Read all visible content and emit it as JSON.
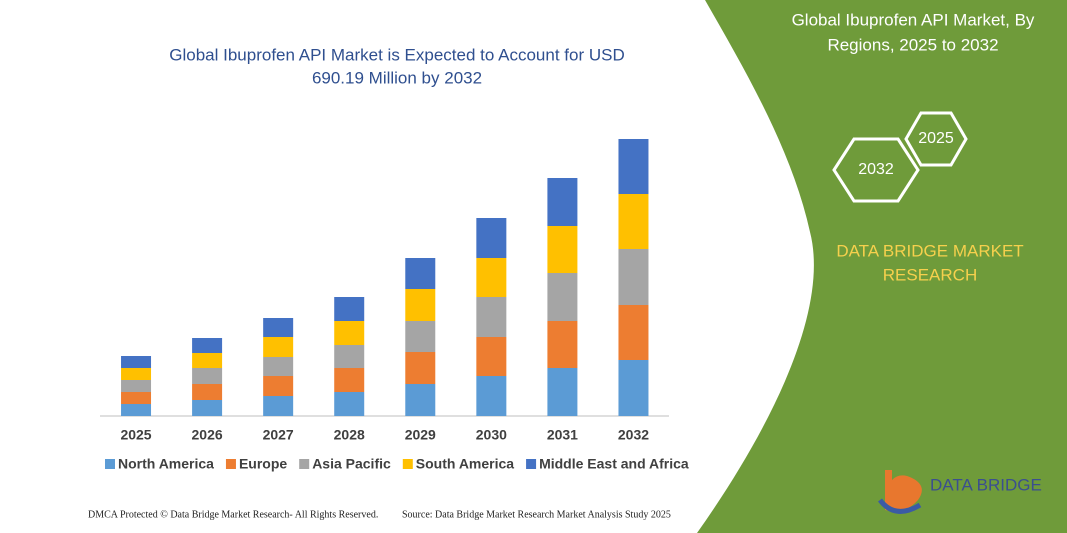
{
  "chart_data": {
    "type": "stacked-bar",
    "title": [
      "Global Ibuprofen API Market is Expected to Account for USD",
      "690.19 Million by 2032"
    ],
    "categories": [
      "2025",
      "2026",
      "2027",
      "2028",
      "2029",
      "2030",
      "2031",
      "2032"
    ],
    "series": [
      {
        "name": "North America",
        "color": "#5b9bd5",
        "values": [
          12,
          16,
          20,
          24,
          32,
          40,
          48,
          56
        ]
      },
      {
        "name": "Europe",
        "color": "#ed7d31",
        "values": [
          12,
          16,
          20,
          24,
          32,
          39,
          47,
          55
        ]
      },
      {
        "name": "Asia Pacific",
        "color": "#a5a5a5",
        "values": [
          12,
          16,
          19,
          23,
          31,
          40,
          48,
          56
        ]
      },
      {
        "name": "South America",
        "color": "#ffc000",
        "values": [
          12,
          15,
          20,
          24,
          32,
          39,
          47,
          55
        ]
      },
      {
        "name": "Middle East and Africa",
        "color": "#4472c4",
        "values": [
          12,
          15,
          19,
          24,
          31,
          40,
          48,
          55
        ]
      }
    ],
    "ylim": [
      0,
      280
    ]
  },
  "panel": {
    "title": [
      "Global Ibuprofen API Market, By",
      "Regions, 2025 to 2032"
    ],
    "hex_a": "2025",
    "hex_b": "2032",
    "brand": [
      "DATA BRIDGE MARKET",
      "RESEARCH"
    ],
    "logo": "DATA BRIDGE"
  },
  "footer": {
    "left": "DMCA Protected © Data Bridge Market Research- All Rights Reserved.",
    "right": "Source: Data Bridge Market Research  Market Analysis Study 2025"
  }
}
